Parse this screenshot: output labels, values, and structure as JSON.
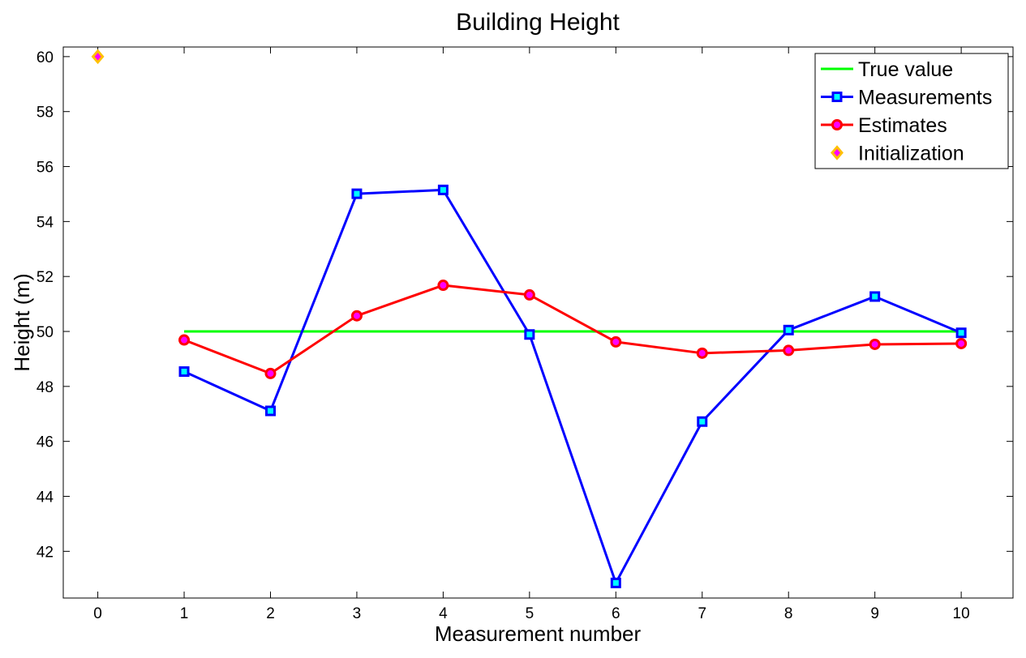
{
  "chart_data": {
    "type": "line",
    "title": "Building Height",
    "xlabel": "Measurement number",
    "ylabel": "Height (m)",
    "xlim": [
      -0.4,
      10.6
    ],
    "ylim": [
      40.3,
      60.35
    ],
    "xticks": [
      0,
      1,
      2,
      3,
      4,
      5,
      6,
      7,
      8,
      9,
      10
    ],
    "yticks": [
      42,
      44,
      46,
      48,
      50,
      52,
      54,
      56,
      58,
      60
    ],
    "legend_position": "top-right",
    "series": [
      {
        "name": "True value",
        "color": "#00ff00",
        "marker": "none",
        "x": [
          1,
          2,
          3,
          4,
          5,
          6,
          7,
          8,
          9,
          10
        ],
        "values": [
          50,
          50,
          50,
          50,
          50,
          50,
          50,
          50,
          50,
          50
        ]
      },
      {
        "name": "Measurements",
        "color": "#0000ff",
        "marker": "square",
        "marker_fill": "#00ffff",
        "x": [
          1,
          2,
          3,
          4,
          5,
          6,
          7,
          8,
          9,
          10
        ],
        "values": [
          48.54,
          47.11,
          55.01,
          55.15,
          49.89,
          40.85,
          46.72,
          50.05,
          51.27,
          49.95
        ]
      },
      {
        "name": "Estimates",
        "color": "#ff0000",
        "marker": "circle",
        "marker_fill": "#ff00ff",
        "x": [
          1,
          2,
          3,
          4,
          5,
          6,
          7,
          8,
          9,
          10
        ],
        "values": [
          49.69,
          48.47,
          50.57,
          51.68,
          51.33,
          49.62,
          49.21,
          49.31,
          49.53,
          49.56
        ]
      },
      {
        "name": "Initialization",
        "color": "#ffc000",
        "marker": "diamond",
        "marker_fill": "#ff00ff",
        "x": [
          0
        ],
        "values": [
          60
        ]
      }
    ]
  }
}
